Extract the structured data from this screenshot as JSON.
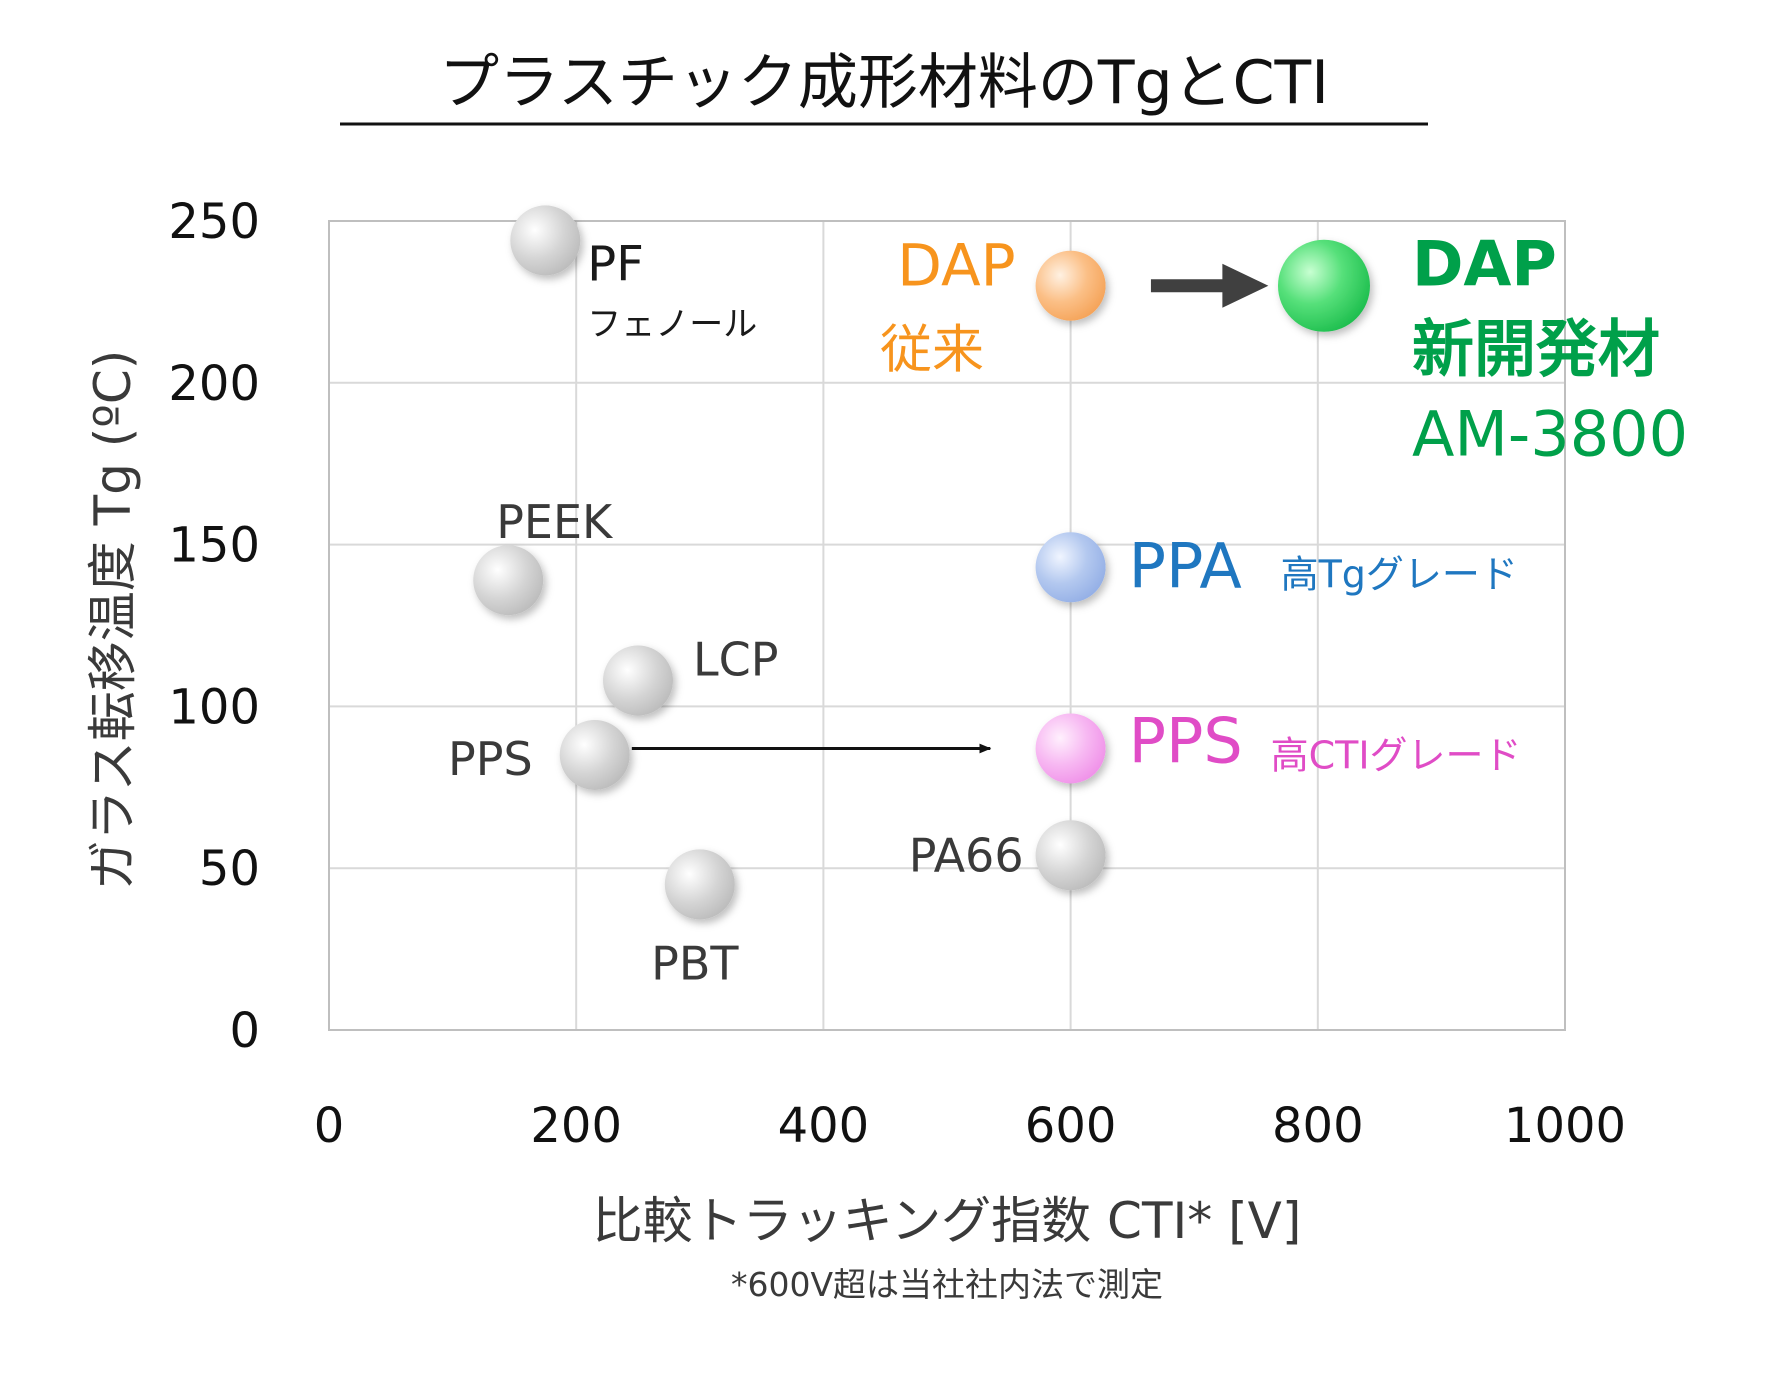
{
  "chart_data": {
    "type": "scatter",
    "title": "プラスチック成形材料のTgとCTI",
    "xlabel": "比較トラッキング指数 CTI* [V]",
    "ylabel": "ガラス転移温度 Tg (ºC)",
    "footnote": "*600V超は当社社内法で測定",
    "xlim": [
      0,
      1000
    ],
    "ylim": [
      0,
      250
    ],
    "x_ticks": [
      0,
      200,
      400,
      600,
      800,
      1000
    ],
    "y_ticks": [
      0,
      50,
      100,
      150,
      200,
      250
    ],
    "grid": true,
    "points": [
      {
        "label": "PF",
        "sublabel": "フェノール",
        "x": 175,
        "y": 244,
        "color": "#d4d4d4",
        "label_color": "#1a1a1a"
      },
      {
        "label": "PEEK",
        "sublabel": "",
        "x": 145,
        "y": 139,
        "color": "#d4d4d4",
        "label_color": "#3a3a3a"
      },
      {
        "label": "LCP",
        "sublabel": "",
        "x": 250,
        "y": 108,
        "color": "#d4d4d4",
        "label_color": "#3a3a3a"
      },
      {
        "label": "PPS",
        "sublabel": "",
        "x": 215,
        "y": 85,
        "color": "#d4d4d4",
        "label_color": "#3a3a3a"
      },
      {
        "label": "PBT",
        "sublabel": "",
        "x": 300,
        "y": 45,
        "color": "#d4d4d4",
        "label_color": "#3a3a3a"
      },
      {
        "label": "PA66",
        "sublabel": "",
        "x": 600,
        "y": 54,
        "color": "#d4d4d4",
        "label_color": "#3a3a3a"
      },
      {
        "label": "DAP",
        "sublabel": "従来",
        "x": 600,
        "y": 230,
        "color": "#fbbf86",
        "label_color": "#f7941d"
      },
      {
        "label": "DAP",
        "sublabel": "新開発材",
        "sublabel2": "AM-3800",
        "x": 805,
        "y": 230,
        "color": "#3fd26a",
        "label_color": "#00a04a"
      },
      {
        "label": "PPA",
        "sublabel": "高Tgグレード",
        "x": 600,
        "y": 143,
        "color": "#b3c8ef",
        "label_color": "#1f77c0"
      },
      {
        "label": "PPS",
        "sublabel": "高CTIグレード",
        "x": 600,
        "y": 87,
        "color": "#f7b8f2",
        "label_color": "#e04cc6"
      }
    ],
    "arrows": [
      {
        "from": [
          665,
          230
        ],
        "to": [
          760,
          230
        ],
        "style": "thick"
      },
      {
        "from": [
          245,
          87
        ],
        "to": [
          535,
          87
        ],
        "style": "thin"
      }
    ]
  }
}
